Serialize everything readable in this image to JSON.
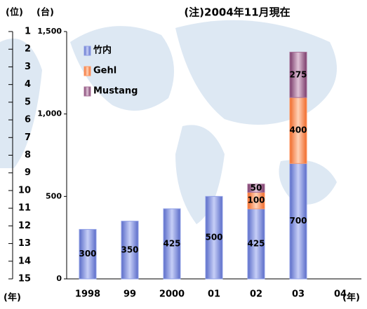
{
  "chart_data": {
    "type": "bar",
    "stacked": true,
    "title": "(注)2004年11月現在",
    "ylabel": "(台)",
    "y2label": "(位)",
    "xlabel": "(年)",
    "annotations": [
      "(年)"
    ],
    "categories": [
      "1998",
      "99",
      "2000",
      "01",
      "02",
      "03",
      "04"
    ],
    "series": [
      {
        "name": "竹内",
        "color": "#8f9fe6",
        "values": [
          300,
          350,
          425,
          500,
          425,
          700,
          null
        ]
      },
      {
        "name": "Gehl",
        "color": "#ff9a66",
        "values": [
          null,
          null,
          null,
          null,
          100,
          400,
          null
        ]
      },
      {
        "name": "Mustang",
        "color": "#a8739a",
        "values": [
          null,
          null,
          null,
          null,
          50,
          275,
          null
        ]
      }
    ],
    "ylim": [
      0,
      1500
    ],
    "yticks": [
      0,
      500,
      {
        "value": 1000,
        "label": "1,000"
      },
      {
        "value": 1500,
        "label": "1,500"
      }
    ],
    "y2lim": [
      15,
      1
    ],
    "y2ticks": [
      1,
      2,
      3,
      4,
      5,
      6,
      7,
      8,
      9,
      10,
      11,
      12,
      13,
      14,
      15
    ],
    "legend": "top-left"
  }
}
